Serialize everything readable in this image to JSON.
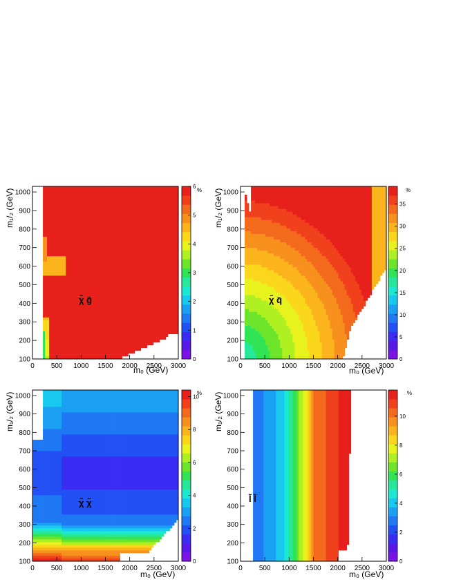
{
  "chart_data": [
    {
      "type": "heatmap",
      "label": "χ̃ g̃",
      "xlabel": "m₀ (GeV)",
      "ylabel": "m₁/₂ (GeV)",
      "xlim": [
        0,
        3000
      ],
      "ylim": [
        100,
        1030
      ],
      "xticks": [
        "0",
        "500",
        "1000",
        "1500",
        "2000",
        "2500",
        "3000"
      ],
      "yticks": [
        "100",
        "200",
        "300",
        "400",
        "500",
        "600",
        "700",
        "800",
        "900",
        "1000"
      ],
      "colorbar": {
        "unit": "%",
        "min": 0,
        "max": 6,
        "ticks": [
          "0",
          "1",
          "2",
          "3",
          "4",
          "5",
          "6"
        ]
      },
      "colors": {
        "fill": "#f42020",
        "orange": "#fb9a1a",
        "yellow": "#f8e81a"
      }
    },
    {
      "type": "heatmap",
      "label": "χ̃ q̃",
      "xlabel": "m₀ (GeV)",
      "ylabel": "m₁/₂ (GeV)",
      "xlim": [
        0,
        3000
      ],
      "ylim": [
        100,
        1030
      ],
      "xticks": [
        "0",
        "500",
        "1000",
        "1500",
        "2000",
        "2500",
        "3000"
      ],
      "yticks": [
        "100",
        "200",
        "300",
        "400",
        "500",
        "600",
        "700",
        "800",
        "900",
        "1000"
      ],
      "colorbar": {
        "unit": "%",
        "min": 0,
        "max": 39,
        "ticks": [
          "0",
          "5",
          "10",
          "15",
          "20",
          "25",
          "30",
          "35"
        ]
      },
      "approx_values": {
        "origin_region": 22,
        "far_corner": 38
      }
    },
    {
      "type": "heatmap",
      "label": "χ̃ χ̃",
      "xlabel": "m₀ (GeV)",
      "ylabel": "m₁/₂ (GeV)",
      "xlim": [
        0,
        3000
      ],
      "ylim": [
        100,
        1030
      ],
      "xticks": [
        "0",
        "500",
        "1000",
        "1500",
        "2000",
        "2500",
        "3000"
      ],
      "yticks": [
        "100",
        "200",
        "300",
        "400",
        "500",
        "600",
        "700",
        "800",
        "900",
        "1000"
      ],
      "colorbar": {
        "unit": "%",
        "min": 0,
        "max": 10.4,
        "ticks": [
          "0",
          "2",
          "4",
          "6",
          "8",
          "10"
        ]
      },
      "approx_values": {
        "low_m12": 8,
        "mid_m12": 2,
        "high_m12": 3
      }
    },
    {
      "type": "heatmap",
      "label": "l̃ l̃",
      "xlabel": "m₀ (GeV)",
      "ylabel": "m₁/₂ (GeV)",
      "xlim": [
        0,
        3000
      ],
      "ylim": [
        100,
        1030
      ],
      "xticks": [
        "0",
        "500",
        "1000",
        "1500",
        "2000",
        "2500",
        "3000"
      ],
      "yticks": [
        "100",
        "200",
        "300",
        "400",
        "500",
        "600",
        "700",
        "800",
        "900",
        "1000"
      ],
      "colorbar": {
        "unit": "%",
        "min": 0,
        "max": 11.8,
        "ticks": [
          "0",
          "2",
          "4",
          "6",
          "8",
          "10"
        ]
      },
      "approx_values": {
        "m0_250": 3,
        "m0_1000": 5,
        "m0_1800": 10
      }
    }
  ]
}
